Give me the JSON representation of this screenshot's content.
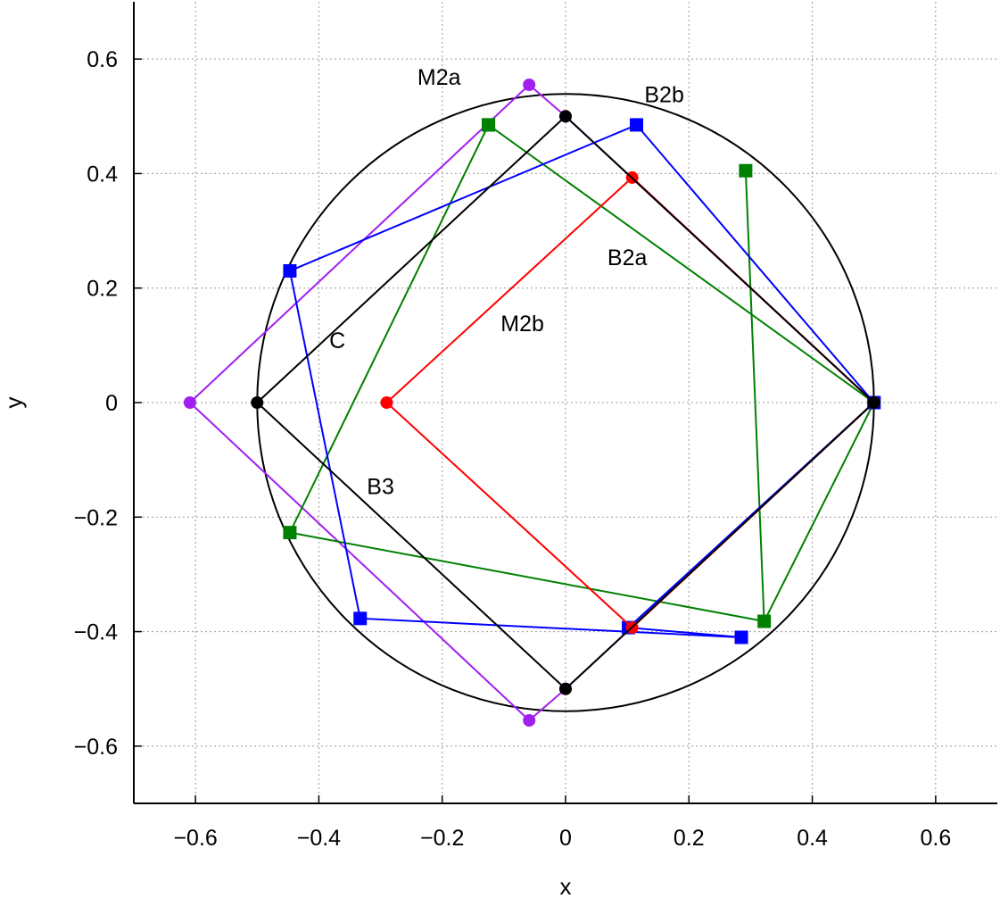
{
  "chart_data": {
    "type": "line",
    "title": "",
    "xlabel": "x",
    "ylabel": "y",
    "xlim": [
      -0.7,
      0.7
    ],
    "ylim": [
      -0.7,
      0.7
    ],
    "xticks": [
      -0.6,
      -0.4,
      -0.2,
      0,
      0.2,
      0.4,
      0.6
    ],
    "yticks": [
      -0.6,
      -0.4,
      -0.2,
      0,
      0.2,
      0.4,
      0.6
    ],
    "xtick_labels": [
      "−0.6",
      "−0.4",
      "−0.2",
      "0",
      "0.2",
      "0.4",
      "0.6"
    ],
    "ytick_labels": [
      "−0.6",
      "−0.4",
      "−0.2",
      "0",
      "0.2",
      "0.4",
      "0.6"
    ],
    "grid": true,
    "circle": {
      "center": [
        0,
        0
      ],
      "radius": 0.5,
      "color": "#000000"
    },
    "series": [
      {
        "id": "m2a",
        "color": "#a020f0",
        "marker": "circle",
        "closed": true,
        "points": [
          [
            -0.609,
            0.0
          ],
          [
            -0.059,
            0.555
          ],
          [
            0.0,
            0.5
          ],
          [
            0.5,
            0.0
          ],
          [
            0.0,
            -0.5
          ],
          [
            -0.059,
            -0.555
          ]
        ]
      },
      {
        "id": "b2a",
        "color": "#008000",
        "marker": "square",
        "closed": true,
        "points": [
          [
            -0.125,
            0.485
          ],
          [
            0.5,
            0.0
          ],
          [
            0.322,
            -0.382
          ],
          [
            -0.447,
            -0.227
          ],
          [
            -0.125,
            0.485
          ]
        ],
        "extra_segments": [
          [
            [
              0.292,
              0.405
            ],
            [
              0.322,
              -0.382
            ]
          ]
        ]
      },
      {
        "id": "b2b",
        "color": "#0000ff",
        "marker": "square",
        "closed": true,
        "points": [
          [
            -0.447,
            0.23
          ],
          [
            0.115,
            0.485
          ],
          [
            0.5,
            0.0
          ],
          [
            0.102,
            -0.393
          ],
          [
            0.285,
            -0.41
          ],
          [
            -0.333,
            -0.377
          ]
        ]
      },
      {
        "id": "m2b",
        "color": "#ff0000",
        "marker": "circle",
        "closed": true,
        "points": [
          [
            -0.29,
            0.0
          ],
          [
            0.108,
            0.393
          ],
          [
            0.5,
            0.0
          ],
          [
            0.108,
            -0.393
          ]
        ]
      },
      {
        "id": "c",
        "color": "#000000",
        "marker": "circle",
        "closed": true,
        "points": [
          [
            -0.5,
            0.0
          ],
          [
            0.0,
            0.5
          ],
          [
            0.5,
            0.0
          ],
          [
            0.0,
            -0.5
          ]
        ]
      }
    ],
    "annotations": [
      {
        "text": "M2a",
        "x": -0.205,
        "y": 0.555
      },
      {
        "text": "B2b",
        "x": 0.16,
        "y": 0.525
      },
      {
        "text": "B2a",
        "x": 0.1,
        "y": 0.24
      },
      {
        "text": "M2b",
        "x": -0.07,
        "y": 0.125
      },
      {
        "text": "C",
        "x": -0.37,
        "y": 0.095
      },
      {
        "text": "B3",
        "x": -0.3,
        "y": -0.16
      }
    ]
  }
}
